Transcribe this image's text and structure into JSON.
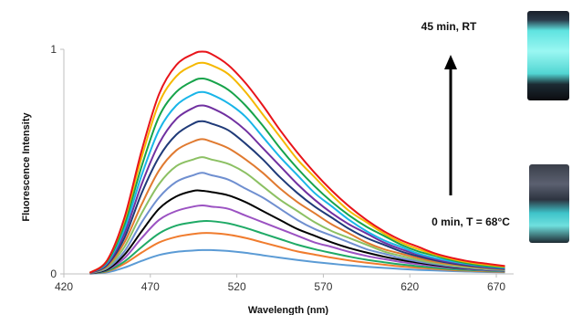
{
  "chart_data": {
    "type": "line",
    "title": "",
    "xlabel": "Wavelength (nm)",
    "ylabel": "Fluorescence Intensity",
    "xlim": [
      420,
      680
    ],
    "ylim": [
      0,
      1
    ],
    "x_ticks": [
      "420",
      "470",
      "520",
      "570",
      "620",
      "670"
    ],
    "y_ticks": [
      "0",
      "1"
    ],
    "grid": false,
    "legend": "none",
    "annotations": {
      "top": "45 min, RT",
      "bottom": "0 min, T = 68°C"
    },
    "x": [
      435,
      445,
      455,
      465,
      475,
      485,
      495,
      500,
      505,
      515,
      525,
      535,
      545,
      555,
      565,
      575,
      585,
      595,
      605,
      615,
      625,
      635,
      645,
      655,
      665,
      675
    ],
    "series": [
      {
        "color": "#e8141a",
        "values": [
          0.005,
          0.06,
          0.25,
          0.55,
          0.8,
          0.93,
          0.98,
          0.99,
          0.98,
          0.93,
          0.85,
          0.75,
          0.64,
          0.54,
          0.45,
          0.37,
          0.3,
          0.24,
          0.19,
          0.15,
          0.12,
          0.09,
          0.07,
          0.055,
          0.045,
          0.035
        ]
      },
      {
        "color": "#f5b800",
        "values": [
          0.005,
          0.06,
          0.24,
          0.52,
          0.76,
          0.88,
          0.93,
          0.94,
          0.93,
          0.89,
          0.81,
          0.71,
          0.61,
          0.51,
          0.43,
          0.35,
          0.28,
          0.23,
          0.18,
          0.14,
          0.11,
          0.085,
          0.065,
          0.05,
          0.04,
          0.032
        ]
      },
      {
        "color": "#17a34a",
        "values": [
          0.005,
          0.055,
          0.22,
          0.48,
          0.7,
          0.81,
          0.86,
          0.87,
          0.86,
          0.82,
          0.75,
          0.66,
          0.56,
          0.47,
          0.39,
          0.32,
          0.26,
          0.21,
          0.17,
          0.13,
          0.1,
          0.08,
          0.06,
          0.045,
          0.035,
          0.03
        ]
      },
      {
        "color": "#19b5e8",
        "values": [
          0.005,
          0.05,
          0.2,
          0.44,
          0.64,
          0.75,
          0.8,
          0.81,
          0.8,
          0.76,
          0.7,
          0.61,
          0.52,
          0.44,
          0.36,
          0.3,
          0.24,
          0.19,
          0.15,
          0.12,
          0.09,
          0.07,
          0.055,
          0.042,
          0.033,
          0.027
        ]
      },
      {
        "color": "#7030a0",
        "values": [
          0.005,
          0.045,
          0.18,
          0.4,
          0.58,
          0.69,
          0.74,
          0.75,
          0.74,
          0.7,
          0.64,
          0.56,
          0.48,
          0.4,
          0.33,
          0.27,
          0.22,
          0.18,
          0.14,
          0.11,
          0.085,
          0.065,
          0.05,
          0.04,
          0.03,
          0.025
        ]
      },
      {
        "color": "#1f3a78",
        "values": [
          0.004,
          0.04,
          0.16,
          0.36,
          0.52,
          0.62,
          0.67,
          0.68,
          0.67,
          0.64,
          0.58,
          0.51,
          0.43,
          0.36,
          0.3,
          0.25,
          0.2,
          0.16,
          0.13,
          0.1,
          0.078,
          0.06,
          0.046,
          0.036,
          0.028,
          0.022
        ]
      },
      {
        "color": "#e07a30",
        "values": [
          0.004,
          0.035,
          0.14,
          0.31,
          0.46,
          0.55,
          0.59,
          0.6,
          0.59,
          0.56,
          0.51,
          0.45,
          0.38,
          0.32,
          0.27,
          0.22,
          0.18,
          0.14,
          0.11,
          0.09,
          0.07,
          0.054,
          0.042,
          0.033,
          0.026,
          0.02
        ]
      },
      {
        "color": "#8cc063",
        "values": [
          0.004,
          0.03,
          0.12,
          0.27,
          0.4,
          0.48,
          0.51,
          0.52,
          0.51,
          0.49,
          0.45,
          0.39,
          0.33,
          0.28,
          0.23,
          0.19,
          0.16,
          0.13,
          0.1,
          0.08,
          0.062,
          0.048,
          0.037,
          0.029,
          0.023,
          0.018
        ]
      },
      {
        "color": "#6f8fd0",
        "values": [
          0.003,
          0.025,
          0.1,
          0.23,
          0.34,
          0.41,
          0.44,
          0.45,
          0.44,
          0.42,
          0.38,
          0.34,
          0.29,
          0.24,
          0.2,
          0.17,
          0.14,
          0.11,
          0.09,
          0.07,
          0.055,
          0.043,
          0.033,
          0.026,
          0.02,
          0.016
        ]
      },
      {
        "color": "#000000",
        "values": [
          0.003,
          0.02,
          0.085,
          0.19,
          0.29,
          0.345,
          0.37,
          0.37,
          0.365,
          0.35,
          0.32,
          0.28,
          0.24,
          0.2,
          0.17,
          0.14,
          0.115,
          0.095,
          0.077,
          0.062,
          0.05,
          0.039,
          0.03,
          0.024,
          0.019,
          0.015
        ]
      },
      {
        "color": "#9b52c2",
        "values": [
          0.002,
          0.018,
          0.07,
          0.16,
          0.24,
          0.28,
          0.3,
          0.305,
          0.3,
          0.29,
          0.26,
          0.23,
          0.2,
          0.17,
          0.14,
          0.12,
          0.098,
          0.08,
          0.066,
          0.053,
          0.043,
          0.034,
          0.027,
          0.021,
          0.017,
          0.013
        ]
      },
      {
        "color": "#1faa66",
        "values": [
          0.002,
          0.014,
          0.055,
          0.12,
          0.18,
          0.215,
          0.23,
          0.235,
          0.235,
          0.225,
          0.205,
          0.18,
          0.155,
          0.13,
          0.11,
          0.093,
          0.077,
          0.063,
          0.052,
          0.042,
          0.034,
          0.027,
          0.021,
          0.017,
          0.014,
          0.011
        ]
      },
      {
        "color": "#f07c2e",
        "values": [
          0.002,
          0.011,
          0.045,
          0.095,
          0.14,
          0.165,
          0.178,
          0.182,
          0.182,
          0.175,
          0.16,
          0.14,
          0.12,
          0.1,
          0.086,
          0.072,
          0.06,
          0.05,
          0.041,
          0.033,
          0.027,
          0.022,
          0.017,
          0.014,
          0.011,
          0.009
        ]
      },
      {
        "color": "#5b9bd5",
        "values": [
          0.001,
          0.007,
          0.028,
          0.058,
          0.084,
          0.098,
          0.104,
          0.106,
          0.106,
          0.102,
          0.094,
          0.083,
          0.072,
          0.062,
          0.053,
          0.045,
          0.038,
          0.032,
          0.027,
          0.022,
          0.018,
          0.015,
          0.012,
          0.01,
          0.008,
          0.007
        ]
      }
    ]
  }
}
